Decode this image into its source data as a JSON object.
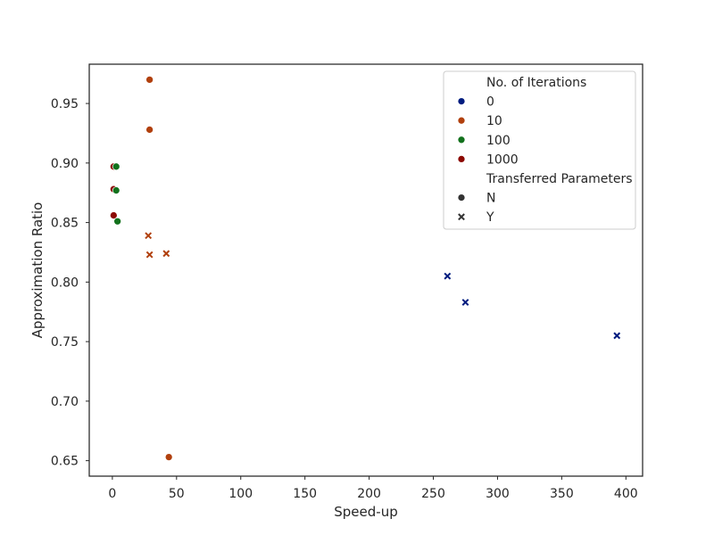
{
  "chart_data": {
    "type": "scatter",
    "xlabel": "Speed-up",
    "ylabel": "Approximation Ratio",
    "xlim": [
      -18,
      413
    ],
    "ylim": [
      0.637,
      0.983
    ],
    "xticks": [
      "0",
      "50",
      "100",
      "150",
      "200",
      "250",
      "300",
      "350",
      "400"
    ],
    "xtick_values": [
      0,
      50,
      100,
      150,
      200,
      250,
      300,
      350,
      400
    ],
    "yticks": [
      "0.65",
      "0.70",
      "0.75",
      "0.80",
      "0.85",
      "0.90",
      "0.95"
    ],
    "ytick_values": [
      0.65,
      0.7,
      0.75,
      0.8,
      0.85,
      0.9,
      0.95
    ],
    "grid": false,
    "legend": {
      "placement": "top-right",
      "hue_title": "No. of Iterations",
      "hue_entries": [
        {
          "label": "0",
          "color": "#001c7f"
        },
        {
          "label": "10",
          "color": "#b1400d"
        },
        {
          "label": "100",
          "color": "#12711c"
        },
        {
          "label": "1000",
          "color": "#8c0800"
        }
      ],
      "style_title": "Transferred Parameters",
      "style_entries": [
        {
          "label": "N",
          "marker": "circle"
        },
        {
          "label": "Y",
          "marker": "x"
        }
      ]
    },
    "series": [
      {
        "iterations": "0",
        "transferred": "Y",
        "color": "#001c7f",
        "marker": "x",
        "points": [
          [
            261,
            0.805
          ],
          [
            275,
            0.783
          ],
          [
            393,
            0.755
          ]
        ]
      },
      {
        "iterations": "10",
        "transferred": "N",
        "color": "#b1400d",
        "marker": "circle",
        "points": [
          [
            29,
            0.97
          ],
          [
            29,
            0.928
          ],
          [
            44,
            0.653
          ]
        ]
      },
      {
        "iterations": "10",
        "transferred": "Y",
        "color": "#b1400d",
        "marker": "x",
        "points": [
          [
            28,
            0.839
          ],
          [
            29,
            0.823
          ],
          [
            42,
            0.824
          ]
        ]
      },
      {
        "iterations": "1000",
        "transferred": "N",
        "color": "#8c0800",
        "marker": "circle",
        "points": [
          [
            1,
            0.897
          ],
          [
            1,
            0.878
          ],
          [
            1,
            0.856
          ]
        ]
      },
      {
        "iterations": "100",
        "transferred": "N",
        "color": "#12711c",
        "marker": "circle",
        "points": [
          [
            3,
            0.897
          ],
          [
            3,
            0.877
          ],
          [
            4,
            0.851
          ]
        ]
      }
    ]
  }
}
